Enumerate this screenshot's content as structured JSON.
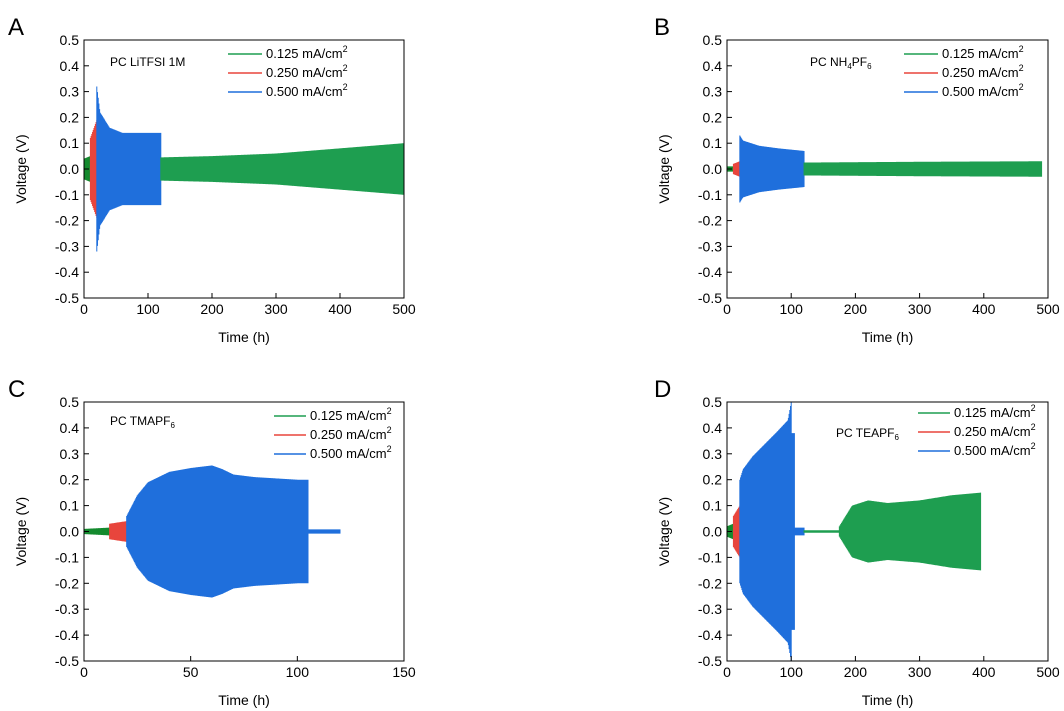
{
  "colors": {
    "c125": "#1e9e50",
    "c250": "#e8453c",
    "c500": "#1f6fdc",
    "c125_light": "#2fbf75",
    "c125_dark": "#148a2e"
  },
  "chart_data": [
    {
      "type": "line",
      "panel": "A",
      "title": "",
      "annotation_parts": [
        "PC LiTFSI 1M"
      ],
      "xlabel": "Time (h)",
      "ylabel": "Voltage (V)",
      "xlim": [
        0,
        500
      ],
      "ylim": [
        -0.5,
        0.5
      ],
      "xticks": [
        0,
        100,
        200,
        300,
        400,
        500
      ],
      "yticks": [
        -0.5,
        -0.4,
        -0.3,
        -0.2,
        -0.1,
        0.0,
        0.1,
        0.2,
        0.3,
        0.4,
        0.5
      ],
      "ytick_labels": [
        "-0.5",
        "-0.4",
        "-0.3",
        "-0.2",
        "-0.1",
        "0.0",
        "0.1",
        "0.2",
        "0.3",
        "0.4",
        "0.5"
      ],
      "legend": [
        "0.125 mA/cm",
        "0.250 mA/cm",
        "0.500 mA/cm"
      ],
      "legend_placement": "top-right",
      "series": [
        {
          "name": "0.125 mA/cm2",
          "color_key": "c125_dark",
          "t": [
            0,
            10
          ],
          "amp": [
            0.04,
            0.05
          ]
        },
        {
          "name": "0.250 mA/cm2",
          "color_key": "c250",
          "t": [
            10,
            20
          ],
          "amp": [
            0.12,
            0.19
          ]
        },
        {
          "name": "0.500 mA/cm2",
          "color_key": "c500",
          "t": [
            20,
            25,
            40,
            60,
            80,
            100,
            120
          ],
          "amp": [
            0.32,
            0.22,
            0.16,
            0.14,
            0.14,
            0.14,
            0.14
          ]
        },
        {
          "name": "0.125 mA/cm2",
          "color_key": "c125",
          "t": [
            120,
            200,
            300,
            400,
            500
          ],
          "amp": [
            0.045,
            0.05,
            0.06,
            0.08,
            0.1
          ]
        }
      ]
    },
    {
      "type": "line",
      "panel": "B",
      "title": "",
      "annotation_parts": [
        "PC NH",
        "4",
        "PF",
        "6"
      ],
      "xlabel": "Time (h)",
      "ylabel": "Voltage (V)",
      "xlim": [
        0,
        500
      ],
      "ylim": [
        -0.5,
        0.5
      ],
      "xticks": [
        0,
        100,
        200,
        300,
        400,
        500
      ],
      "yticks": [
        -0.5,
        -0.4,
        -0.3,
        -0.2,
        -0.1,
        0.0,
        0.1,
        0.2,
        0.3,
        0.4,
        0.5
      ],
      "ytick_labels": [
        "-0.5",
        "-0.4",
        "-0.3",
        "-0.2",
        "-0.1",
        "0.0",
        "0.1",
        "0.2",
        "0.3",
        "0.4",
        "0.5"
      ],
      "legend": [
        "0.125 mA/cm",
        "0.250 mA/cm",
        "0.500 mA/cm"
      ],
      "legend_placement": "top-right",
      "series": [
        {
          "name": "0.125 mA/cm2",
          "color_key": "c125_dark",
          "t": [
            0,
            10
          ],
          "amp": [
            0.01,
            0.01
          ]
        },
        {
          "name": "0.250 mA/cm2",
          "color_key": "c250",
          "t": [
            10,
            20
          ],
          "amp": [
            0.02,
            0.03
          ]
        },
        {
          "name": "0.500 mA/cm2",
          "color_key": "c500",
          "t": [
            20,
            25,
            50,
            80,
            120
          ],
          "amp": [
            0.13,
            0.11,
            0.09,
            0.08,
            0.07
          ]
        },
        {
          "name": "0.125 mA/cm2",
          "color_key": "c125",
          "t": [
            120,
            300,
            490
          ],
          "amp": [
            0.025,
            0.028,
            0.03
          ]
        }
      ]
    },
    {
      "type": "line",
      "panel": "C",
      "title": "",
      "annotation_parts": [
        "PC TMAPF",
        "6"
      ],
      "xlabel": "Time (h)",
      "ylabel": "Voltage (V)",
      "xlim": [
        0,
        150
      ],
      "ylim": [
        -0.5,
        0.5
      ],
      "xticks": [
        0,
        50,
        100,
        150
      ],
      "yticks": [
        -0.5,
        -0.4,
        -0.3,
        -0.2,
        -0.1,
        0.0,
        0.1,
        0.2,
        0.3,
        0.4,
        0.5
      ],
      "ytick_labels": [
        "-0.5",
        "-0.4",
        "-0.3",
        "-0.2",
        "-0.1",
        "0.0",
        "0.1",
        "0.2",
        "0.3",
        "0.4",
        "0.5"
      ],
      "legend": [
        "0.125 mA/cm",
        "0.250 mA/cm",
        "0.500 mA/cm"
      ],
      "legend_placement": "top-right",
      "series": [
        {
          "name": "0.125 mA/cm2",
          "color_key": "c125_dark",
          "t": [
            0,
            12
          ],
          "amp": [
            0.01,
            0.015
          ]
        },
        {
          "name": "0.250 mA/cm2",
          "color_key": "c250",
          "t": [
            12,
            20
          ],
          "amp": [
            0.03,
            0.04
          ]
        },
        {
          "name": "0.500 mA/cm2",
          "color_key": "c500",
          "t": [
            20,
            25,
            30,
            40,
            50,
            60,
            65,
            70,
            80,
            90,
            100,
            105
          ],
          "amp": [
            0.06,
            0.14,
            0.19,
            0.23,
            0.245,
            0.255,
            0.24,
            0.22,
            0.21,
            0.205,
            0.2,
            0.2
          ]
        },
        {
          "name": "0.500 mA/cm2",
          "color_key": "c500",
          "t": [
            105,
            120
          ],
          "amp": [
            0.008,
            0.008
          ]
        }
      ]
    },
    {
      "type": "line",
      "panel": "D",
      "title": "",
      "annotation_parts": [
        "PC TEAPF",
        "6"
      ],
      "xlabel": "Time (h)",
      "ylabel": "Voltage (V)",
      "xlim": [
        0,
        500
      ],
      "ylim": [
        -0.5,
        0.5
      ],
      "xticks": [
        0,
        100,
        200,
        300,
        400,
        500
      ],
      "yticks": [
        -0.5,
        -0.4,
        -0.3,
        -0.2,
        -0.1,
        0.0,
        0.1,
        0.2,
        0.3,
        0.4,
        0.5
      ],
      "ytick_labels": [
        "-0.5",
        "-0.4",
        "-0.3",
        "-0.2",
        "-0.1",
        "0.0",
        "0.1",
        "0.2",
        "0.3",
        "0.4",
        "0.5"
      ],
      "legend": [
        "0.125 mA/cm",
        "0.250 mA/cm",
        "0.500 mA/cm"
      ],
      "legend_placement": "top-right",
      "series": [
        {
          "name": "0.125 mA/cm2",
          "color_key": "c125_dark",
          "t": [
            0,
            10
          ],
          "amp": [
            0.02,
            0.03
          ]
        },
        {
          "name": "0.250 mA/cm2",
          "color_key": "c250",
          "t": [
            10,
            20
          ],
          "amp": [
            0.06,
            0.1
          ]
        },
        {
          "name": "0.500 mA/cm2",
          "color_key": "c500",
          "t": [
            20,
            25,
            40,
            60,
            80,
            95,
            100
          ],
          "amp": [
            0.2,
            0.24,
            0.29,
            0.34,
            0.39,
            0.43,
            0.5
          ]
        },
        {
          "name": "0.500 mA/cm2",
          "color_key": "c500",
          "t": [
            100,
            105
          ],
          "amp": [
            0.38,
            0.38
          ]
        },
        {
          "name": "0.500 mA/cm2",
          "color_key": "c500",
          "t": [
            105,
            120
          ],
          "amp": [
            0.015,
            0.015
          ]
        },
        {
          "name": "0.125 mA/cm2",
          "color_key": "c125",
          "t": [
            120,
            175
          ],
          "amp": [
            0.005,
            0.005
          ]
        },
        {
          "name": "0.125 mA/cm2",
          "color_key": "c125",
          "t": [
            175,
            185,
            195,
            220,
            250,
            300,
            350,
            395
          ],
          "amp": [
            0.02,
            0.06,
            0.1,
            0.12,
            0.11,
            0.12,
            0.14,
            0.15
          ]
        }
      ]
    }
  ]
}
